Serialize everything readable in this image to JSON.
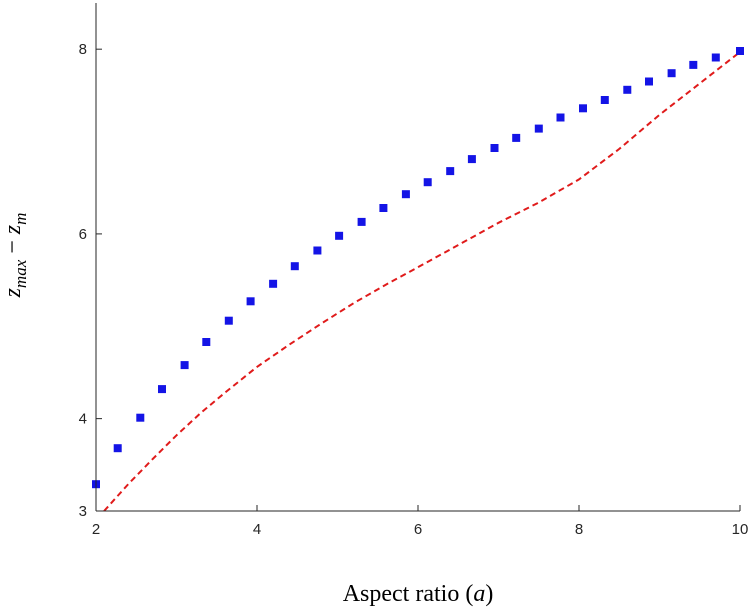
{
  "chart_data": {
    "type": "scatter",
    "xlabel_text": "Aspect ratio",
    "xlabel_var": "a",
    "ylabel_main": "z",
    "ylabel_sub1": "max",
    "ylabel_sub2": "m",
    "xlim": [
      2,
      10
    ],
    "ylim": [
      3,
      8.5
    ],
    "xticks": [
      2,
      4,
      6,
      8,
      10
    ],
    "yticks": [
      3,
      4,
      6,
      8
    ],
    "xtick_labels": [
      "2",
      "4",
      "6",
      "8",
      "10"
    ],
    "ytick_labels": [
      "3",
      "4",
      "6",
      "8"
    ],
    "grid": false,
    "series": [
      {
        "kind": "markers",
        "marker": "square",
        "color": "#1414e6",
        "x": [
          2.0,
          2.27,
          2.55,
          2.82,
          3.1,
          3.37,
          3.65,
          3.92,
          4.2,
          4.47,
          4.75,
          5.02,
          5.3,
          5.57,
          5.85,
          6.12,
          6.4,
          6.67,
          6.95,
          7.22,
          7.5,
          7.77,
          8.05,
          8.32,
          8.6,
          8.87,
          9.15,
          9.42,
          9.7,
          10.0
        ],
        "y": [
          3.29,
          3.68,
          4.01,
          4.32,
          4.58,
          4.83,
          5.06,
          5.27,
          5.46,
          5.65,
          5.82,
          5.98,
          6.13,
          6.28,
          6.43,
          6.56,
          6.68,
          6.81,
          6.93,
          7.04,
          7.14,
          7.26,
          7.36,
          7.45,
          7.56,
          7.65,
          7.74,
          7.83,
          7.91,
          7.98
        ]
      },
      {
        "kind": "line",
        "style": "dashed",
        "color": "#e01b1b",
        "x": [
          2.1,
          2.4,
          2.7,
          3.0,
          3.3,
          3.6,
          4.0,
          4.4,
          4.8,
          5.2,
          5.6,
          6.0,
          6.5,
          7.0,
          7.5,
          8.0,
          8.5,
          9.0,
          9.5,
          10.0
        ],
        "y": [
          3.0,
          3.29,
          3.56,
          3.82,
          4.06,
          4.28,
          4.56,
          4.8,
          5.03,
          5.25,
          5.45,
          5.64,
          5.88,
          6.12,
          6.34,
          6.59,
          6.92,
          7.29,
          7.63,
          7.97
        ]
      }
    ]
  }
}
